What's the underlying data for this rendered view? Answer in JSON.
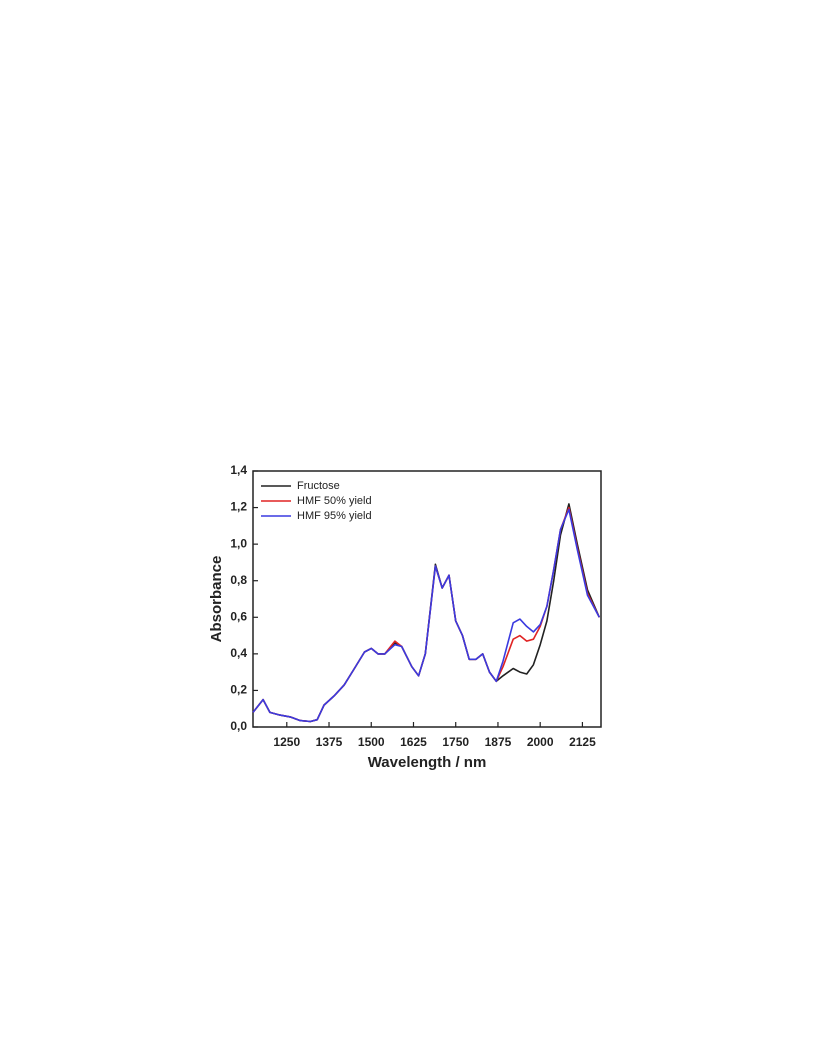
{
  "chart_data": {
    "type": "line",
    "x_label": "Wavelength / nm",
    "y_label": "Absorbance",
    "xlim": [
      1150,
      2180
    ],
    "ylim": [
      0,
      1.4
    ],
    "xticks": [
      1250,
      1375,
      1500,
      1625,
      1750,
      1875,
      2000,
      2125
    ],
    "yticks": [
      {
        "value": 0,
        "label": "0,0"
      },
      {
        "value": 0.2,
        "label": "0,2"
      },
      {
        "value": 0.4,
        "label": "0,4"
      },
      {
        "value": 0.6,
        "label": "0,6"
      },
      {
        "value": 0.8,
        "label": "0,8"
      },
      {
        "value": 1.0,
        "label": "1,0"
      },
      {
        "value": 1.2,
        "label": "1,2"
      },
      {
        "value": 1.4,
        "label": "1,4"
      }
    ],
    "legend": "top-left",
    "x": [
      1150,
      1180,
      1200,
      1230,
      1260,
      1290,
      1320,
      1340,
      1360,
      1390,
      1420,
      1450,
      1480,
      1500,
      1520,
      1540,
      1570,
      1590,
      1620,
      1640,
      1660,
      1690,
      1710,
      1730,
      1750,
      1770,
      1790,
      1810,
      1830,
      1850,
      1870,
      1890,
      1920,
      1940,
      1960,
      1980,
      2000,
      2020,
      2040,
      2060,
      2085,
      2110,
      2140,
      2175
    ],
    "series": [
      {
        "name": "Fructose",
        "color": "#222222",
        "values": [
          0.08,
          0.15,
          0.08,
          0.065,
          0.055,
          0.035,
          0.03,
          0.04,
          0.12,
          0.17,
          0.23,
          0.32,
          0.41,
          0.43,
          0.4,
          0.4,
          0.46,
          0.44,
          0.33,
          0.28,
          0.4,
          0.89,
          0.76,
          0.83,
          0.58,
          0.5,
          0.37,
          0.37,
          0.4,
          0.3,
          0.25,
          0.28,
          0.32,
          0.3,
          0.29,
          0.34,
          0.45,
          0.58,
          0.8,
          1.05,
          1.22,
          1.0,
          0.75,
          0.6
        ]
      },
      {
        "name": "HMF 50% yield",
        "color": "#e02424",
        "values": [
          0.08,
          0.15,
          0.08,
          0.065,
          0.055,
          0.035,
          0.03,
          0.04,
          0.12,
          0.17,
          0.23,
          0.32,
          0.41,
          0.43,
          0.4,
          0.4,
          0.47,
          0.44,
          0.33,
          0.28,
          0.4,
          0.88,
          0.76,
          0.83,
          0.58,
          0.5,
          0.37,
          0.37,
          0.4,
          0.3,
          0.25,
          0.33,
          0.48,
          0.5,
          0.47,
          0.48,
          0.55,
          0.66,
          0.86,
          1.08,
          1.2,
          0.98,
          0.73,
          0.6
        ]
      },
      {
        "name": "HMF 95% yield",
        "color": "#3a3ae0",
        "values": [
          0.08,
          0.15,
          0.08,
          0.065,
          0.055,
          0.035,
          0.03,
          0.04,
          0.12,
          0.17,
          0.23,
          0.32,
          0.41,
          0.43,
          0.4,
          0.4,
          0.45,
          0.44,
          0.33,
          0.28,
          0.4,
          0.88,
          0.76,
          0.83,
          0.58,
          0.5,
          0.37,
          0.37,
          0.4,
          0.3,
          0.25,
          0.36,
          0.57,
          0.59,
          0.55,
          0.52,
          0.56,
          0.66,
          0.86,
          1.08,
          1.19,
          0.97,
          0.72,
          0.6
        ]
      }
    ]
  }
}
